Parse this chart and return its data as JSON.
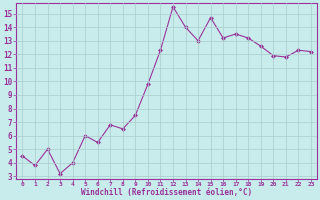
{
  "x": [
    0,
    1,
    2,
    3,
    4,
    5,
    6,
    7,
    8,
    9,
    10,
    11,
    12,
    13,
    14,
    15,
    16,
    17,
    18,
    19,
    20,
    21,
    22,
    23
  ],
  "y": [
    4.5,
    3.8,
    5.0,
    3.2,
    4.0,
    6.0,
    5.5,
    6.8,
    6.5,
    7.5,
    9.8,
    12.3,
    15.5,
    14.0,
    13.0,
    14.7,
    13.2,
    13.5,
    13.2,
    12.6,
    11.9,
    11.8,
    12.3,
    12.2
  ],
  "line_color": "#993399",
  "marker": "D",
  "marker_size": 2,
  "bg_color": "#c8ecec",
  "grid_color": "#aacccc",
  "xlabel": "Windchill (Refroidissement éolien,°C)",
  "ylabel_ticks": [
    3,
    4,
    5,
    6,
    7,
    8,
    9,
    10,
    11,
    12,
    13,
    14,
    15
  ],
  "ylim": [
    2.8,
    15.8
  ],
  "xlim": [
    -0.5,
    23.5
  ],
  "tick_color": "#993399",
  "label_color": "#993399",
  "spine_color": "#993399"
}
